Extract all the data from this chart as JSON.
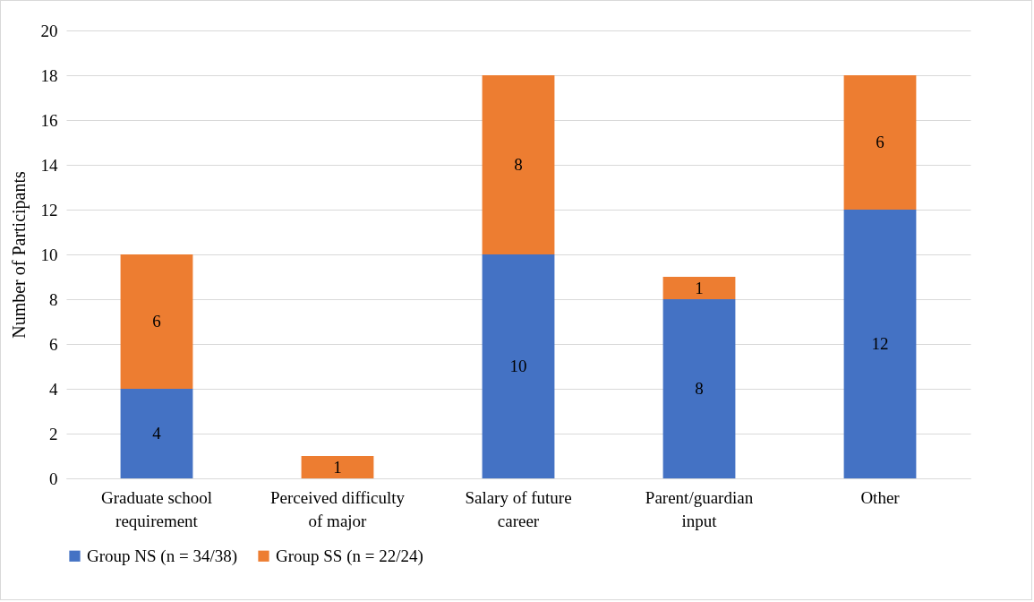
{
  "chart_data": {
    "type": "bar",
    "stacked": true,
    "ylabel": "Number of Participants",
    "categories": [
      "Graduate school requirement",
      "Perceived difficulty of major",
      "Salary of future career",
      "Parent/guardian input",
      "Other"
    ],
    "series": [
      {
        "name": "Group NS (n = 34/38)",
        "color": "#4472c4",
        "values": [
          4,
          null,
          10,
          8,
          12
        ]
      },
      {
        "name": "Group SS (n = 22/24)",
        "color": "#ed7d31",
        "values": [
          6,
          1,
          8,
          1,
          6
        ]
      }
    ],
    "ylim": [
      0,
      20
    ],
    "yticks": [
      0,
      2,
      4,
      6,
      8,
      10,
      12,
      14,
      16,
      18,
      20
    ],
    "grid": "y",
    "legend": "bottom",
    "data_labels": true
  }
}
